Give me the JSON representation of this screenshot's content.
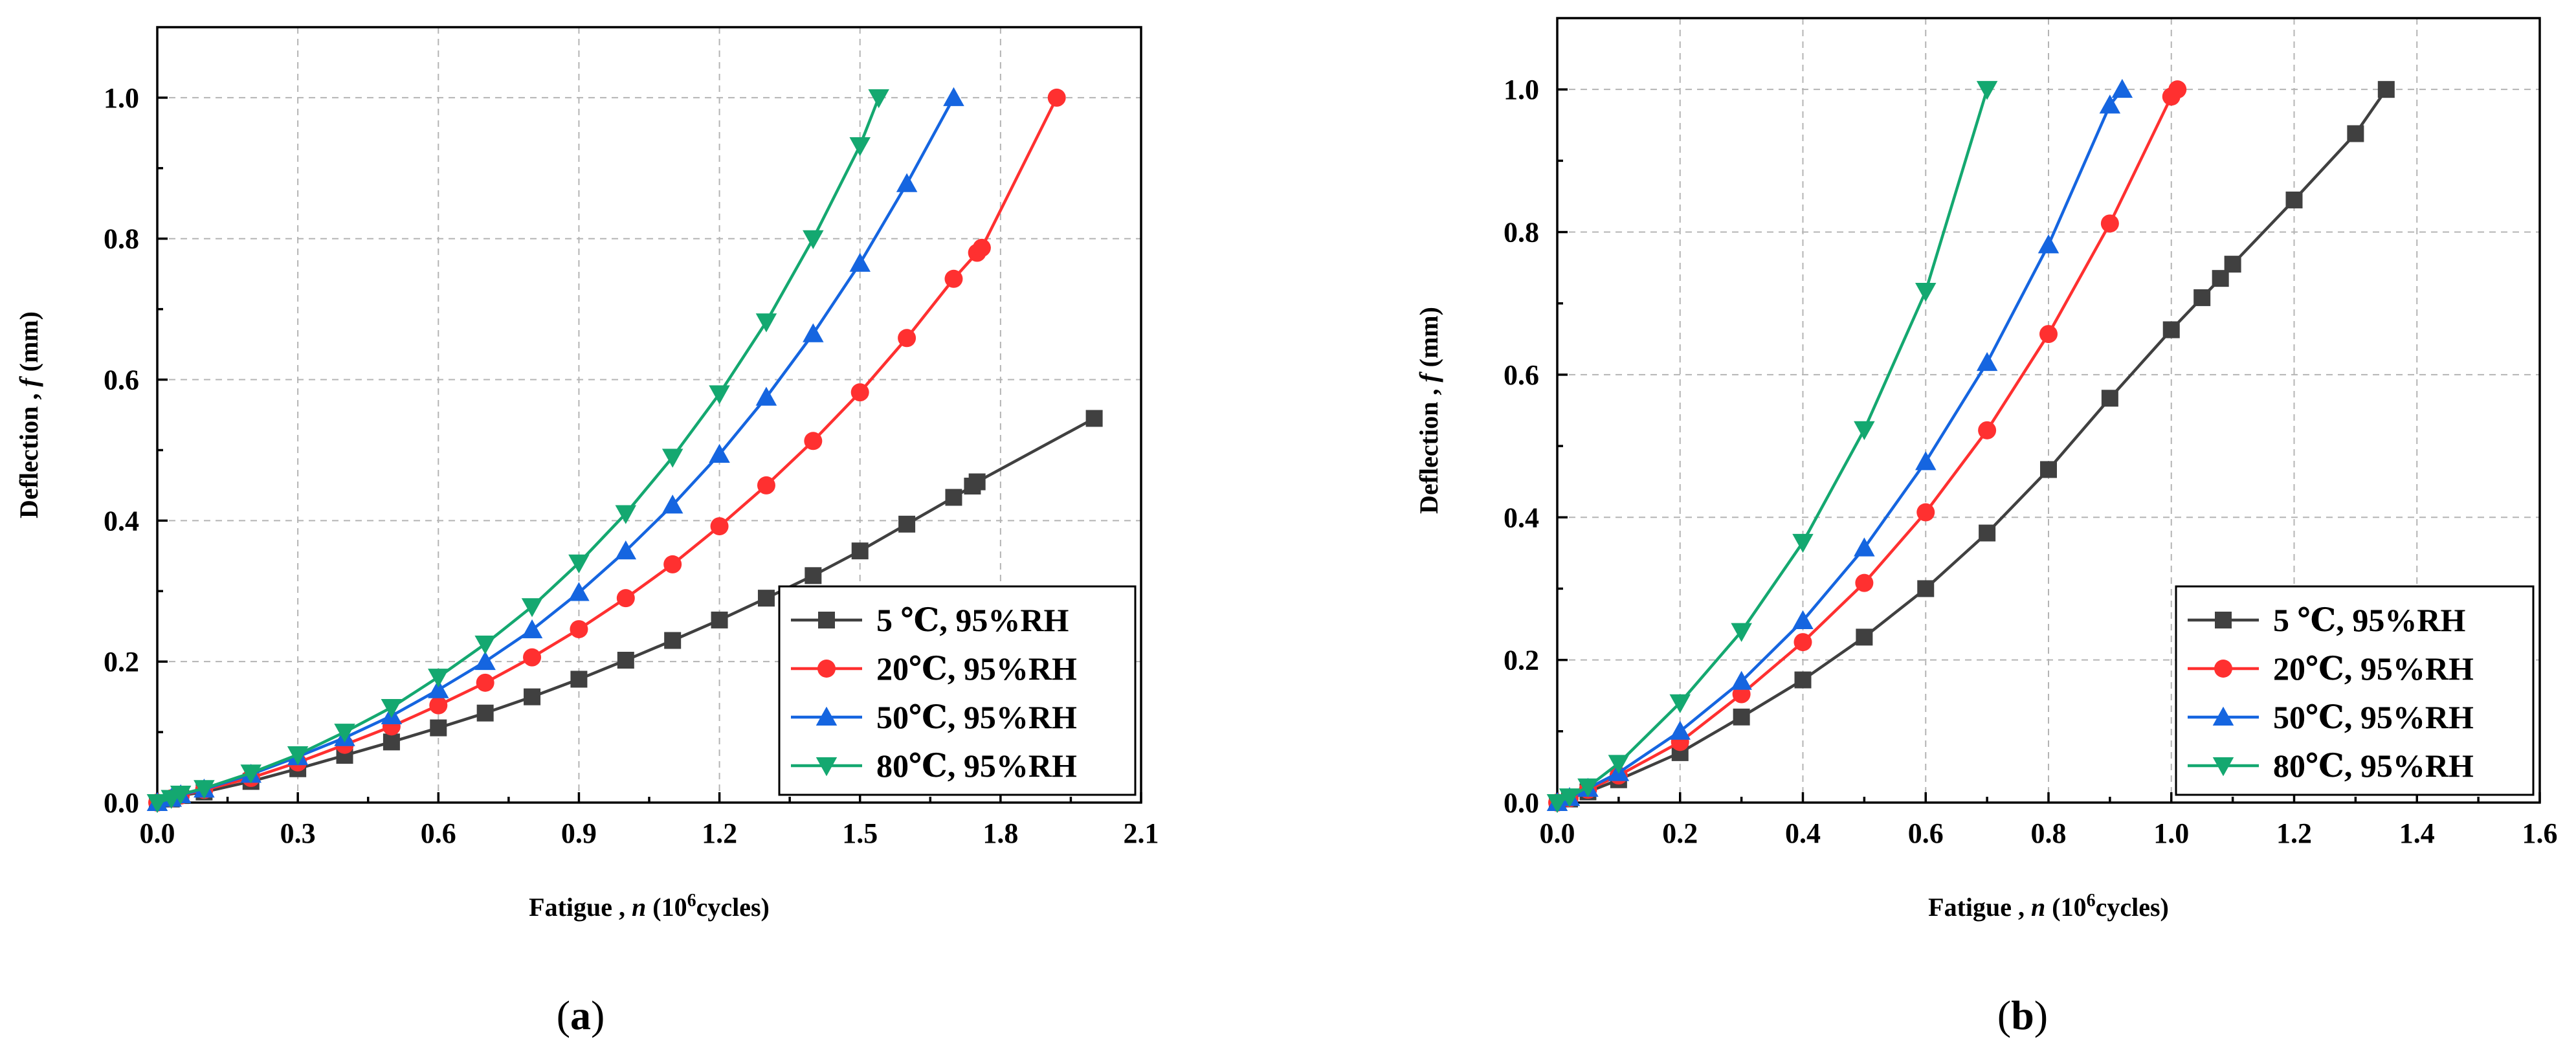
{
  "chart_data": [
    {
      "type": "line",
      "panel_label": {
        "open": "(",
        "letter": "a",
        "close": ")"
      },
      "xlabel": {
        "prefix": "Fatigue , ",
        "var": "n",
        "unit_open": " (10",
        "exp": "6",
        "unit_close": "cycles)"
      },
      "ylabel": {
        "prefix": "Deflection , ",
        "var": "f",
        "unit": " (mm)"
      },
      "xlim": [
        0,
        2.1
      ],
      "ylim": [
        0,
        1.1
      ],
      "xticks": [
        "0.0",
        "0.3",
        "0.6",
        "0.9",
        "1.2",
        "1.5",
        "1.8",
        "2.1"
      ],
      "yticks": [
        "0.0",
        "0.2",
        "0.4",
        "0.6",
        "0.8",
        "1.0"
      ],
      "grid": true,
      "legend_position": "bottom-right",
      "series": [
        {
          "name": "5  ℃, 95%RH",
          "color": "#404040",
          "marker": "square",
          "x": [
            0,
            0.03,
            0.05,
            0.1,
            0.2,
            0.3,
            0.4,
            0.5,
            0.6,
            0.7,
            0.8,
            0.9,
            1.0,
            1.1,
            1.2,
            1.3,
            1.4,
            1.5,
            1.6,
            1.7,
            1.74,
            1.75,
            2.0
          ],
          "y": [
            0,
            0.005,
            0.01,
            0.015,
            0.03,
            0.048,
            0.067,
            0.086,
            0.106,
            0.127,
            0.15,
            0.175,
            0.202,
            0.23,
            0.259,
            0.29,
            0.322,
            0.357,
            0.395,
            0.433,
            0.449,
            0.455,
            0.545
          ]
        },
        {
          "name": "20℃, 95%RH",
          "color": "#ff3030",
          "marker": "circle",
          "x": [
            0,
            0.03,
            0.05,
            0.1,
            0.2,
            0.3,
            0.4,
            0.5,
            0.6,
            0.7,
            0.8,
            0.9,
            1.0,
            1.1,
            1.2,
            1.3,
            1.4,
            1.5,
            1.6,
            1.7,
            1.75,
            1.76,
            1.92
          ],
          "y": [
            0,
            0.006,
            0.01,
            0.018,
            0.035,
            0.057,
            0.082,
            0.108,
            0.138,
            0.17,
            0.206,
            0.246,
            0.29,
            0.338,
            0.392,
            0.45,
            0.513,
            0.582,
            0.659,
            0.743,
            0.78,
            0.787,
            1.0
          ]
        },
        {
          "name": "50℃, 95%RH",
          "color": "#1565e0",
          "marker": "triangle-up",
          "x": [
            0,
            0.03,
            0.05,
            0.1,
            0.2,
            0.3,
            0.4,
            0.5,
            0.6,
            0.7,
            0.8,
            0.9,
            1.0,
            1.1,
            1.2,
            1.3,
            1.4,
            1.5,
            1.6,
            1.7
          ],
          "y": [
            0,
            0.006,
            0.011,
            0.019,
            0.04,
            0.065,
            0.092,
            0.123,
            0.16,
            0.2,
            0.245,
            0.298,
            0.357,
            0.422,
            0.494,
            0.575,
            0.665,
            0.765,
            0.878,
            1.0
          ]
        },
        {
          "name": "80℃, 95%RH",
          "color": "#14a870",
          "marker": "triangle-down",
          "x": [
            0,
            0.03,
            0.05,
            0.1,
            0.2,
            0.3,
            0.4,
            0.5,
            0.6,
            0.7,
            0.8,
            0.9,
            1.0,
            1.1,
            1.2,
            1.3,
            1.4,
            1.5,
            1.54
          ],
          "y": [
            0,
            0.006,
            0.012,
            0.02,
            0.042,
            0.068,
            0.1,
            0.135,
            0.178,
            0.225,
            0.278,
            0.34,
            0.41,
            0.49,
            0.58,
            0.682,
            0.8,
            0.932,
            1.0
          ]
        }
      ]
    },
    {
      "type": "line",
      "panel_label": {
        "open": "(",
        "letter": "b",
        "close": ")"
      },
      "xlabel": {
        "prefix": "Fatigue , ",
        "var": "n",
        "unit_open": " (10",
        "exp": "6",
        "unit_close": "cycles)"
      },
      "ylabel": {
        "prefix": "Deflection , ",
        "var": "f",
        "unit": " (mm)"
      },
      "xlim": [
        0,
        1.6
      ],
      "ylim": [
        0,
        1.1
      ],
      "xticks": [
        "0.0",
        "0.2",
        "0.4",
        "0.6",
        "0.8",
        "1.0",
        "1.2",
        "1.4",
        "1.6"
      ],
      "yticks": [
        "0.0",
        "0.2",
        "0.4",
        "0.6",
        "0.8",
        "1.0"
      ],
      "grid": true,
      "legend_position": "bottom-right",
      "series": [
        {
          "name": "5  ℃, 95%RH",
          "color": "#404040",
          "marker": "square",
          "x": [
            0,
            0.02,
            0.05,
            0.1,
            0.2,
            0.3,
            0.4,
            0.5,
            0.6,
            0.7,
            0.8,
            0.9,
            1.0,
            1.05,
            1.08,
            1.1,
            1.2,
            1.3,
            1.35
          ],
          "y": [
            0,
            0.005,
            0.015,
            0.032,
            0.07,
            0.12,
            0.172,
            0.232,
            0.3,
            0.378,
            0.467,
            0.567,
            0.663,
            0.708,
            0.735,
            0.755,
            0.845,
            0.938,
            1.0
          ]
        },
        {
          "name": "20℃, 95%RH",
          "color": "#ff3030",
          "marker": "circle",
          "x": [
            0,
            0.02,
            0.05,
            0.1,
            0.2,
            0.3,
            0.4,
            0.5,
            0.6,
            0.7,
            0.8,
            0.9,
            1.0,
            1.01
          ],
          "y": [
            0,
            0.006,
            0.018,
            0.038,
            0.085,
            0.152,
            0.225,
            0.308,
            0.407,
            0.522,
            0.657,
            0.812,
            0.99,
            1.0
          ]
        },
        {
          "name": "50℃, 95%RH",
          "color": "#1565e0",
          "marker": "triangle-up",
          "x": [
            0,
            0.02,
            0.05,
            0.1,
            0.2,
            0.3,
            0.4,
            0.5,
            0.6,
            0.7,
            0.8,
            0.9,
            0.92
          ],
          "y": [
            0,
            0.007,
            0.02,
            0.042,
            0.1,
            0.17,
            0.255,
            0.357,
            0.478,
            0.617,
            0.782,
            0.978,
            1.0
          ]
        },
        {
          "name": "80℃, 95%RH",
          "color": "#14a870",
          "marker": "triangle-down",
          "x": [
            0,
            0.02,
            0.05,
            0.1,
            0.2,
            0.3,
            0.4,
            0.5,
            0.6,
            0.7
          ],
          "y": [
            0,
            0.008,
            0.022,
            0.055,
            0.14,
            0.24,
            0.365,
            0.523,
            0.717,
            1.0
          ]
        }
      ]
    }
  ]
}
